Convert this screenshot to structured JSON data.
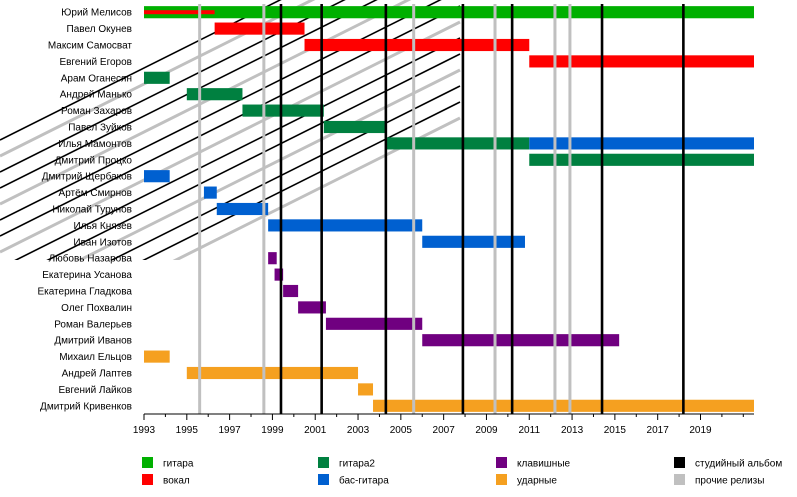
{
  "chart_data": {
    "type": "timeline",
    "x_range": [
      1993,
      2021.5
    ],
    "x_ticks": [
      1993,
      1995,
      1997,
      1999,
      2001,
      2003,
      2005,
      2007,
      2009,
      2011,
      2013,
      2015,
      2017,
      2019
    ],
    "grid": false,
    "colors": {
      "guitar": "#00b000",
      "vocal": "#ff0000",
      "guitar2": "#008040",
      "bass": "#0060d0",
      "keys": "#700080",
      "drums": "#f5a020",
      "studio": "#000000",
      "other": "#c0c0c0"
    },
    "members": [
      "Юрий Мелисов",
      "Павел Окунев",
      "Максим Самосват",
      "Евгений Егоров",
      "Арам Оганесян",
      "Андрей Манько",
      "Роман Захаров",
      "Павел Зуйков",
      "Илья Мамонтов",
      "Дмитрий Процко",
      "Дмитрий Щербаков",
      "Артём Смирнов",
      "Николай Турунов",
      "Илья Князев",
      "Иван Изотов",
      "Любовь Назарова",
      "Екатерина Усанова",
      "Екатерина Гладкова",
      "Олег Похвалин",
      "Роман Валерьев",
      "Дмитрий Иванов",
      "Михаил Ельцов",
      "Андрей Лаптев",
      "Евгений Лайков",
      "Дмитрий Кривенков"
    ],
    "bars": [
      {
        "member": 0,
        "role": "guitar",
        "start": 1993.0,
        "end": 2021.5
      },
      {
        "member": 0,
        "role": "vocal",
        "start": 1993.0,
        "end": 1996.3,
        "thin": true
      },
      {
        "member": 1,
        "role": "vocal",
        "start": 1996.3,
        "end": 2000.5
      },
      {
        "member": 2,
        "role": "vocal",
        "start": 2000.5,
        "end": 2011.0
      },
      {
        "member": 3,
        "role": "vocal",
        "start": 2011.0,
        "end": 2021.5
      },
      {
        "member": 4,
        "role": "guitar2",
        "start": 1993.0,
        "end": 1994.2
      },
      {
        "member": 5,
        "role": "guitar2",
        "start": 1995.0,
        "end": 1997.6
      },
      {
        "member": 6,
        "role": "guitar2",
        "start": 1997.6,
        "end": 2001.4
      },
      {
        "member": 7,
        "role": "guitar2",
        "start": 2001.4,
        "end": 2004.3
      },
      {
        "member": 8,
        "role": "guitar2",
        "start": 2004.3,
        "end": 2011.0
      },
      {
        "member": 8,
        "role": "bass",
        "start": 2011.0,
        "end": 2021.5
      },
      {
        "member": 9,
        "role": "guitar2",
        "start": 2011.0,
        "end": 2021.5
      },
      {
        "member": 10,
        "role": "bass",
        "start": 1993.0,
        "end": 1994.2
      },
      {
        "member": 11,
        "role": "bass",
        "start": 1995.8,
        "end": 1996.4
      },
      {
        "member": 12,
        "role": "bass",
        "start": 1996.4,
        "end": 1998.8
      },
      {
        "member": 13,
        "role": "bass",
        "start": 1998.8,
        "end": 2006.0
      },
      {
        "member": 14,
        "role": "bass",
        "start": 2006.0,
        "end": 2010.8
      },
      {
        "member": 15,
        "role": "keys",
        "start": 1998.8,
        "end": 1999.2
      },
      {
        "member": 16,
        "role": "keys",
        "start": 1999.1,
        "end": 1999.5
      },
      {
        "member": 17,
        "role": "keys",
        "start": 1999.5,
        "end": 2000.2
      },
      {
        "member": 18,
        "role": "keys",
        "start": 2000.2,
        "end": 2001.5
      },
      {
        "member": 19,
        "role": "keys",
        "start": 2001.5,
        "end": 2006.0
      },
      {
        "member": 20,
        "role": "keys",
        "start": 2006.0,
        "end": 2015.2
      },
      {
        "member": 21,
        "role": "drums",
        "start": 1993.0,
        "end": 1994.2
      },
      {
        "member": 22,
        "role": "drums",
        "start": 1995.0,
        "end": 2003.0
      },
      {
        "member": 23,
        "role": "drums",
        "start": 2003.0,
        "end": 2003.7
      },
      {
        "member": 24,
        "role": "drums",
        "start": 2003.7,
        "end": 2021.5
      }
    ],
    "studio_albums": [
      1999.4,
      2001.3,
      2004.3,
      2007.9,
      2010.2,
      2014.4,
      2018.2
    ],
    "other_releases": [
      1995.6,
      1998.6,
      2005.6,
      2009.4,
      2012.2,
      2012.9
    ],
    "legend": [
      {
        "key": "guitar",
        "label": "гитара"
      },
      {
        "key": "vocal",
        "label": "вокал"
      },
      {
        "key": "guitar2",
        "label": "гитара2"
      },
      {
        "key": "bass",
        "label": "бас-гитара"
      },
      {
        "key": "keys",
        "label": "клавишные"
      },
      {
        "key": "drums",
        "label": "ударные"
      },
      {
        "key": "studio",
        "label": "студийный альбом"
      },
      {
        "key": "other",
        "label": "прочие релизы"
      }
    ],
    "legend_position": "bottom"
  }
}
